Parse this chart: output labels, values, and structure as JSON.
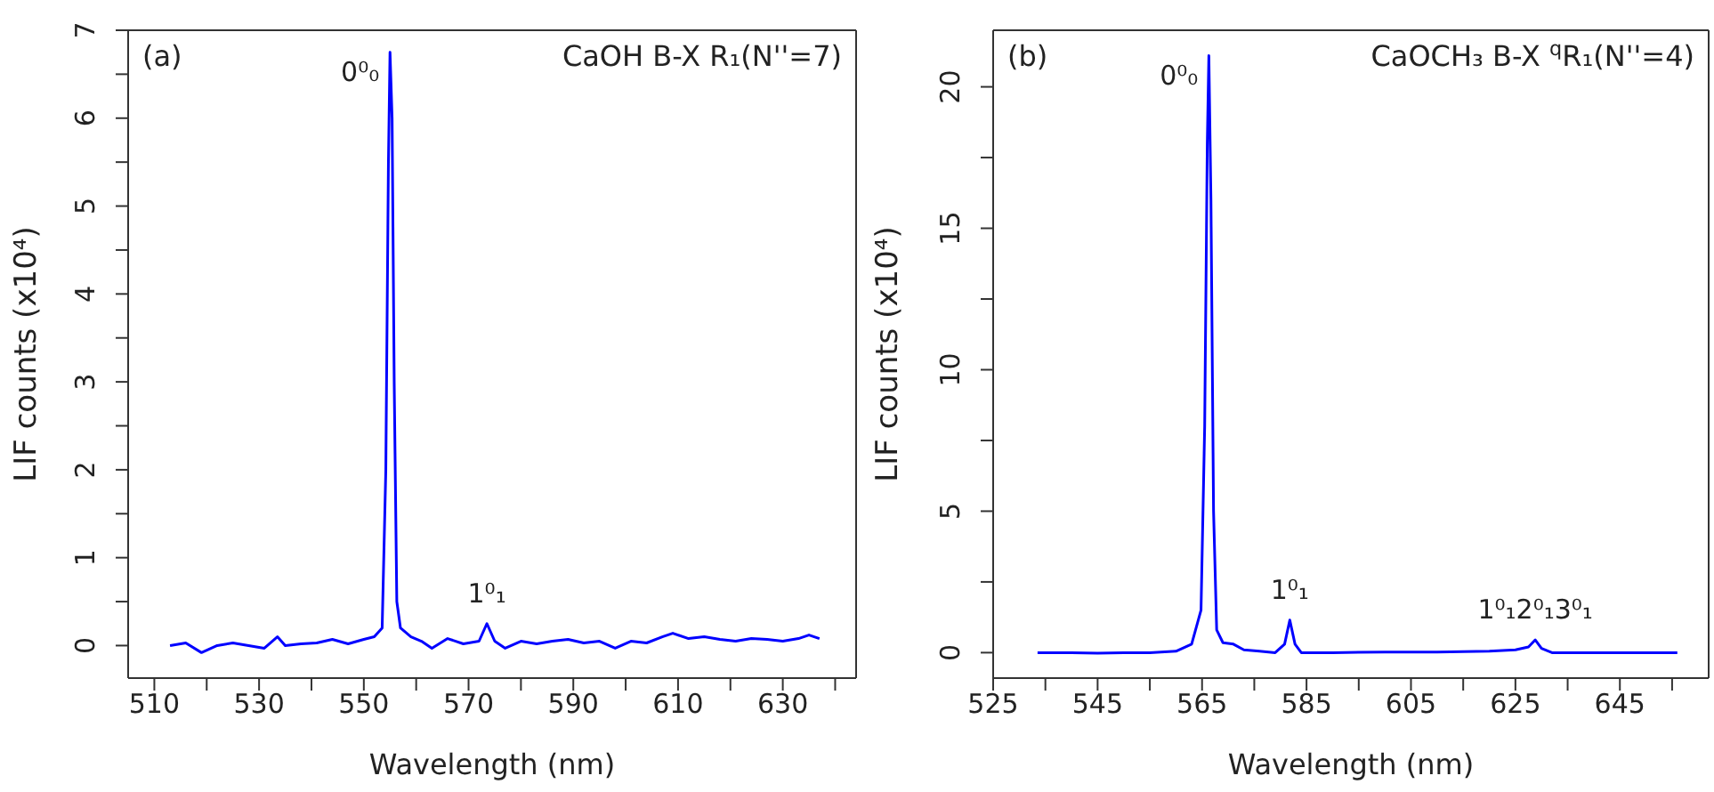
{
  "chart_data": [
    {
      "type": "line",
      "title": "CaOH B-X R₁(N''=7)",
      "xlabel": "Wavelength (nm)",
      "ylabel": "LIF counts (x10⁴)",
      "color": "#0000ff",
      "annotations": [
        "(a)",
        {
          "text": "0⁰₀",
          "x": 555,
          "y": 6.75
        },
        {
          "text": "1⁰₁",
          "x": 573.5,
          "y": 0.25
        }
      ],
      "x": [
        513,
        516,
        519,
        522,
        525,
        528,
        531,
        533.5,
        535,
        538,
        541,
        544,
        547,
        550,
        552,
        553.5,
        554.2,
        554.7,
        555,
        555.4,
        555.8,
        556.3,
        557,
        559,
        561,
        563,
        566,
        569,
        572,
        573.5,
        575,
        577,
        580,
        583,
        586,
        589,
        592,
        595,
        598,
        601,
        604,
        607,
        609,
        612,
        615,
        618,
        621,
        624,
        627,
        630,
        633,
        635,
        637
      ],
      "values": [
        0,
        0.03,
        -0.08,
        0,
        0.03,
        0,
        -0.03,
        0.1,
        0,
        0.02,
        0.03,
        0.07,
        0.02,
        0.07,
        0.1,
        0.2,
        2,
        5.5,
        6.75,
        6,
        3,
        0.5,
        0.2,
        0.1,
        0.05,
        -0.03,
        0.08,
        0.02,
        0.05,
        0.25,
        0.05,
        -0.03,
        0.05,
        0.02,
        0.05,
        0.07,
        0.03,
        0.05,
        -0.03,
        0.05,
        0.03,
        0.1,
        0.14,
        0.08,
        0.1,
        0.07,
        0.05,
        0.08,
        0.07,
        0.05,
        0.08,
        0.12,
        0.08
      ],
      "xlim": [
        505,
        644
      ],
      "ylim": [
        -0.37,
        7
      ],
      "xticks": [
        510,
        {
          "value": 520,
          "label": null
        },
        530,
        {
          "value": 540,
          "label": null
        },
        550,
        {
          "value": 560,
          "label": null
        },
        570,
        {
          "value": 580,
          "label": null
        },
        590,
        {
          "value": 600,
          "label": null
        },
        610,
        {
          "value": 620,
          "label": null
        },
        630,
        {
          "value": 640,
          "label": null
        }
      ],
      "yticks": [
        0,
        {
          "value": 0.5,
          "label": null
        },
        1,
        {
          "value": 1.5,
          "label": null
        },
        2,
        {
          "value": 2.5,
          "label": null
        },
        3,
        {
          "value": 3.5,
          "label": null
        },
        4,
        {
          "value": 4.5,
          "label": null
        },
        5,
        {
          "value": 5.5,
          "label": null
        },
        6,
        {
          "value": 6.5,
          "label": null
        },
        7
      ]
    },
    {
      "type": "line",
      "title": "CaOCH₃ B-X $^{q}$R₁(N''=4)",
      "xlabel": "Wavelength (nm)",
      "ylabel": "LIF counts (x10⁴)",
      "color": "#0000ff",
      "annotations": [
        "(b)",
        {
          "text": "0⁰₀",
          "x": 566.3,
          "y": 21.1
        },
        {
          "text": "1⁰₁",
          "x": 581.8,
          "y": 1.15
        },
        {
          "text": "1⁰₁2⁰₁3⁰₁",
          "x": 628.8,
          "y": 0.45
        }
      ],
      "x": [
        533.5,
        540,
        545,
        550,
        555,
        560,
        563,
        564.8,
        565.5,
        566,
        566.3,
        566.7,
        567.2,
        567.8,
        569,
        571,
        573,
        576,
        579,
        580.8,
        581.8,
        582.8,
        584,
        590,
        600,
        610,
        620,
        625,
        627.5,
        628.8,
        630,
        632,
        640,
        650,
        656
      ],
      "values": [
        0,
        0,
        -0.02,
        0,
        0,
        0.05,
        0.3,
        1.5,
        8,
        18,
        21.1,
        16,
        5,
        0.8,
        0.35,
        0.3,
        0.1,
        0.05,
        0,
        0.3,
        1.15,
        0.3,
        0,
        0,
        0.02,
        0.02,
        0.05,
        0.1,
        0.2,
        0.45,
        0.15,
        0,
        0,
        0,
        0
      ],
      "xlim": [
        525,
        662
      ],
      "ylim": [
        -0.9,
        22
      ],
      "xticks": [
        525,
        {
          "value": 535,
          "label": null
        },
        545,
        {
          "value": 555,
          "label": null
        },
        565,
        {
          "value": 575,
          "label": null
        },
        585,
        {
          "value": 595,
          "label": null
        },
        605,
        {
          "value": 615,
          "label": null
        },
        625,
        {
          "value": 635,
          "label": null
        },
        645,
        {
          "value": 655,
          "label": null
        }
      ],
      "yticks": [
        0,
        {
          "value": 2.5,
          "label": null
        },
        5,
        {
          "value": 7.5,
          "label": null
        },
        10,
        {
          "value": 12.5,
          "label": null
        },
        15,
        {
          "value": 17.5,
          "label": null
        },
        20
      ]
    }
  ]
}
